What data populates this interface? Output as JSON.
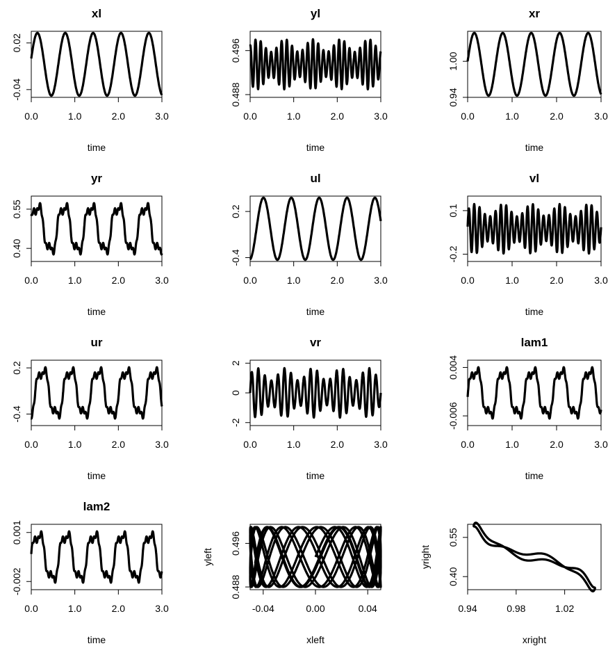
{
  "chart_data": [
    {
      "type": "line",
      "title": "xl",
      "xlabel": "time",
      "ylabel": "",
      "xlim": [
        0,
        3
      ],
      "ylim": [
        -0.05,
        0.035
      ],
      "xticks": [
        "0.0",
        "1.0",
        "2.0",
        "3.0"
      ],
      "yticks": [
        "-0.04",
        "0.02"
      ],
      "series": [
        {
          "x": [
            0,
            3
          ],
          "y": [
            -0.05,
            0.035
          ],
          "shape": "sine",
          "period": 0.64,
          "start_value": 0.0
        }
      ]
    },
    {
      "type": "line",
      "title": "yl",
      "xlabel": "time",
      "ylabel": "",
      "xlim": [
        0,
        3
      ],
      "ylim": [
        0.4875,
        0.4995
      ],
      "xticks": [
        "0.0",
        "1.0",
        "2.0",
        "3.0"
      ],
      "yticks": [
        "0.488",
        "0.496"
      ],
      "series": [
        {
          "x": [
            0,
            3
          ],
          "y": [
            0.4875,
            0.4995
          ],
          "shape": "fast-oscillation",
          "period": 0.12,
          "start_value": 0.4995
        }
      ]
    },
    {
      "type": "line",
      "title": "xr",
      "xlabel": "time",
      "ylabel": "",
      "xlim": [
        0,
        3
      ],
      "ylim": [
        0.94,
        1.05
      ],
      "xticks": [
        "0.0",
        "1.0",
        "2.0",
        "3.0"
      ],
      "yticks": [
        "0.94",
        "1.00"
      ],
      "series": [
        {
          "x": [
            0,
            3
          ],
          "y": [
            0.94,
            1.05
          ],
          "shape": "sine",
          "period": 0.64,
          "start_value": 1.0
        }
      ]
    },
    {
      "type": "line",
      "title": "yr",
      "xlabel": "time",
      "ylabel": "",
      "xlim": [
        0,
        3
      ],
      "ylim": [
        0.35,
        0.6
      ],
      "xticks": [
        "0.0",
        "1.0",
        "2.0",
        "3.0"
      ],
      "yticks": [
        "0.40",
        "0.55"
      ],
      "series": [
        {
          "x": [
            0,
            3
          ],
          "y": [
            0.35,
            0.6
          ],
          "shape": "stepped-wave",
          "period": 0.62,
          "start_value": 0.5
        }
      ]
    },
    {
      "type": "line",
      "title": "ul",
      "xlabel": "time",
      "ylabel": "",
      "xlim": [
        0,
        3
      ],
      "ylim": [
        -0.45,
        0.4
      ],
      "xticks": [
        "0.0",
        "1.0",
        "2.0",
        "3.0"
      ],
      "yticks": [
        "-0.4",
        "0.2"
      ],
      "series": [
        {
          "x": [
            0,
            3
          ],
          "y": [
            -0.45,
            0.4
          ],
          "shape": "sine",
          "period": 0.64,
          "start_value": -0.45
        }
      ]
    },
    {
      "type": "line",
      "title": "vl",
      "xlabel": "time",
      "ylabel": "",
      "xlim": [
        0,
        3
      ],
      "ylim": [
        -0.25,
        0.2
      ],
      "xticks": [
        "0.0",
        "1.0",
        "2.0",
        "3.0"
      ],
      "yticks": [
        "-0.2",
        "0.1"
      ],
      "series": [
        {
          "x": [
            0,
            3
          ],
          "y": [
            -0.25,
            0.2
          ],
          "shape": "fast-oscillation",
          "period": 0.12,
          "start_value": -0.0
        }
      ]
    },
    {
      "type": "line",
      "title": "ur",
      "xlabel": "time",
      "ylabel": "",
      "xlim": [
        0,
        3
      ],
      "ylim": [
        -0.55,
        0.3
      ],
      "xticks": [
        "0.0",
        "1.0",
        "2.0",
        "3.0"
      ],
      "yticks": [
        "-0.4",
        "0.2"
      ],
      "series": [
        {
          "x": [
            0,
            3
          ],
          "y": [
            -0.55,
            0.3
          ],
          "shape": "stepped-wave",
          "period": 0.64,
          "start_value": -0.45
        }
      ]
    },
    {
      "type": "line",
      "title": "vr",
      "xlabel": "time",
      "ylabel": "",
      "xlim": [
        0,
        3
      ],
      "ylim": [
        -2.2,
        2.2
      ],
      "xticks": [
        "0.0",
        "1.0",
        "2.0",
        "3.0"
      ],
      "yticks": [
        "-2",
        "0",
        "2"
      ],
      "series": [
        {
          "x": [
            0,
            3
          ],
          "y": [
            -2.2,
            2.2
          ],
          "shape": "fast-oscillation",
          "period": 0.15,
          "start_value": 0.0
        }
      ]
    },
    {
      "type": "line",
      "title": "lam1",
      "xlabel": "time",
      "ylabel": "",
      "xlim": [
        0,
        3
      ],
      "ylim": [
        -0.008,
        0.0055
      ],
      "xticks": [
        "0.0",
        "1.0",
        "2.0",
        "3.0"
      ],
      "yticks": [
        "-0.006",
        "0.004"
      ],
      "series": [
        {
          "x": [
            0,
            3
          ],
          "y": [
            -0.008,
            0.0055
          ],
          "shape": "stepped-wave",
          "period": 0.64,
          "start_value": -0.002
        }
      ]
    },
    {
      "type": "line",
      "title": "lam2",
      "xlabel": "time",
      "ylabel": "",
      "xlim": [
        0,
        3
      ],
      "ylim": [
        -0.0025,
        0.0015
      ],
      "xticks": [
        "0.0",
        "1.0",
        "2.0",
        "3.0"
      ],
      "yticks": [
        "-0.002",
        "0.001"
      ],
      "series": [
        {
          "x": [
            0,
            3
          ],
          "y": [
            -0.0025,
            0.0015
          ],
          "shape": "stepped-wave",
          "period": 0.64,
          "start_value": -0.0005
        }
      ]
    },
    {
      "type": "line",
      "title": "",
      "xlabel": "xleft",
      "ylabel": "yleft",
      "xlim": [
        -0.05,
        0.05
      ],
      "ylim": [
        0.4875,
        0.4995
      ],
      "xticks": [
        "-0.04",
        "0.00",
        "0.04"
      ],
      "yticks": [
        "0.488",
        "0.496"
      ],
      "series": [
        {
          "x": [
            -0.05,
            0.05
          ],
          "y": [
            0.4875,
            0.4995
          ],
          "shape": "phase-portrait-lissajous"
        }
      ]
    },
    {
      "type": "line",
      "title": "",
      "xlabel": "xright",
      "ylabel": "yright",
      "xlim": [
        0.94,
        1.05
      ],
      "ylim": [
        0.35,
        0.6
      ],
      "xticks": [
        "0.94",
        "0.98",
        "1.02"
      ],
      "yticks": [
        "0.40",
        "0.55"
      ],
      "series": [
        {
          "x": [
            0.94,
            1.05
          ],
          "y": [
            0.6,
            0.35
          ],
          "shape": "phase-portrait-diagonal-band"
        }
      ]
    }
  ]
}
